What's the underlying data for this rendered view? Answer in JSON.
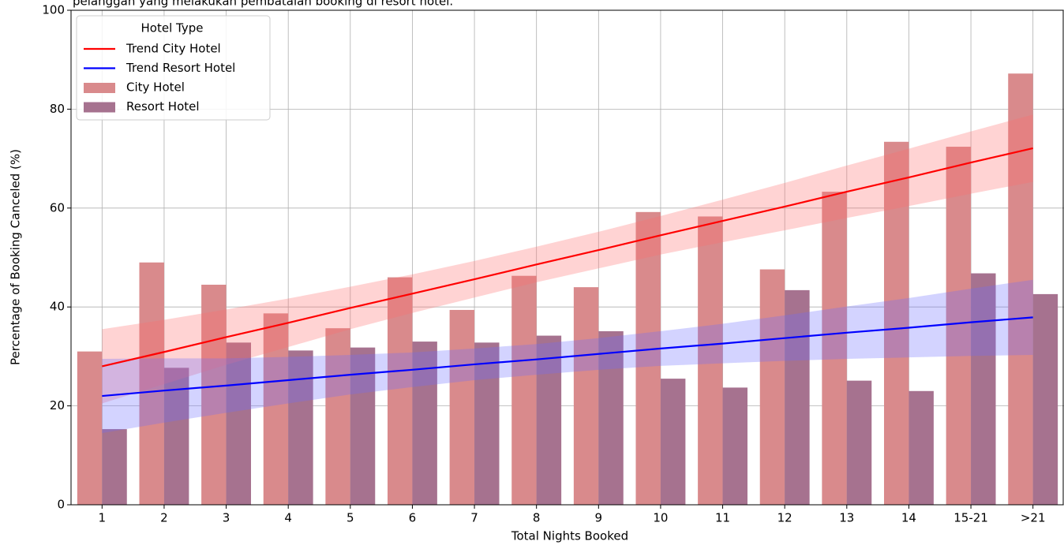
{
  "chart_data": {
    "type": "bar",
    "title": "pelanggan yang melakukan pembatalan booking di resort hotel.",
    "x_label": "Total Nights Booked",
    "y_label": "Percentage of Booking Canceled (%)",
    "legend_title": "Hotel Type",
    "legend": "upper left",
    "grid": true,
    "categories": [
      "1",
      "2",
      "3",
      "4",
      "5",
      "6",
      "7",
      "8",
      "9",
      "10",
      "11",
      "12",
      "13",
      "14",
      "15-21",
      ">21"
    ],
    "series": [
      {
        "name": "City Hotel",
        "color": "#d98a8c",
        "values": [
          31,
          49,
          44.5,
          38.7,
          35.7,
          46,
          39.4,
          46.3,
          44,
          59.2,
          58.3,
          47.6,
          63.3,
          73.4,
          72.4,
          87.2
        ]
      },
      {
        "name": "Resort Hotel",
        "color": "#a6728f",
        "values": [
          15.3,
          27.7,
          32.8,
          31.2,
          31.8,
          33,
          32.8,
          34.2,
          35.1,
          25.5,
          23.7,
          43.4,
          25.1,
          23,
          46.8,
          42.6
        ]
      }
    ],
    "trends": [
      {
        "name": "Trend City Hotel",
        "color": "#ff0000",
        "band_color": "rgba(255,110,110,0.3)",
        "values": [
          28.0,
          30.9,
          33.9,
          36.8,
          39.8,
          42.7,
          45.6,
          48.6,
          51.5,
          54.5,
          57.4,
          60.3,
          63.3,
          66.2,
          69.2,
          72.1
        ],
        "band_upper": [
          35.5,
          37.4,
          39.5,
          41.7,
          44.1,
          46.6,
          49.3,
          52.2,
          55.2,
          58.4,
          61.7,
          65.1,
          68.6,
          72.0,
          75.5,
          78.9
        ],
        "band_lower": [
          20.5,
          24.4,
          28.3,
          31.9,
          35.5,
          38.8,
          41.9,
          45.0,
          47.8,
          50.6,
          53.1,
          55.5,
          58.0,
          60.4,
          62.9,
          65.3
        ]
      },
      {
        "name": "Trend Resort Hotel",
        "color": "#0000ff",
        "band_color": "rgba(110,110,255,0.3)",
        "values": [
          22.0,
          23.1,
          24.1,
          25.2,
          26.3,
          27.3,
          28.4,
          29.4,
          30.5,
          31.6,
          32.6,
          33.7,
          34.8,
          35.8,
          36.9,
          37.9
        ],
        "band_upper": [
          29.5,
          29.6,
          29.6,
          29.9,
          30.3,
          30.8,
          31.6,
          32.5,
          33.7,
          35.1,
          36.6,
          38.3,
          40.1,
          41.8,
          43.7,
          45.5
        ],
        "band_lower": [
          14.5,
          16.6,
          18.6,
          20.5,
          22.3,
          23.8,
          25.2,
          26.3,
          27.3,
          28.1,
          28.6,
          29.1,
          29.5,
          29.8,
          30.1,
          30.3
        ]
      }
    ],
    "ylim": [
      0,
      100
    ],
    "yticks": [
      0,
      20,
      40,
      60,
      80,
      100
    ]
  }
}
